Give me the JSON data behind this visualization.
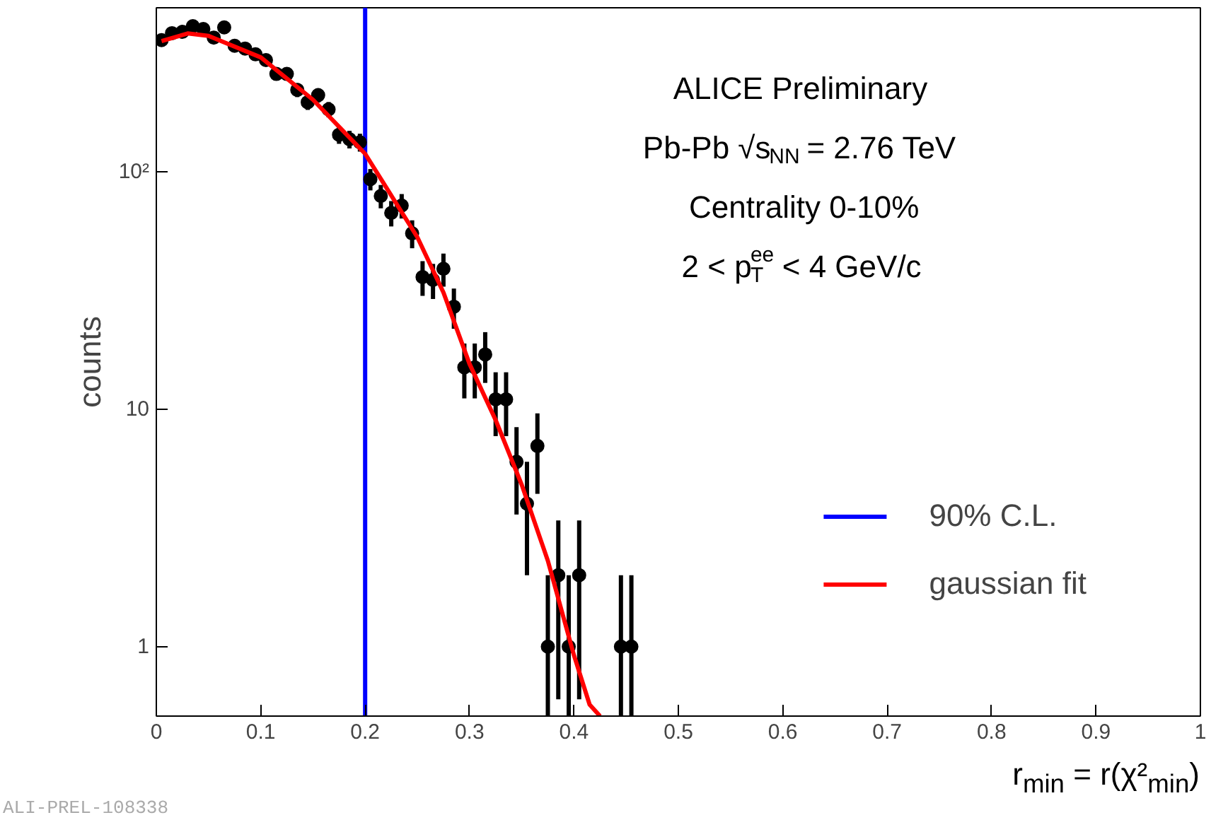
{
  "chart_data": {
    "type": "scatter",
    "xlabel": "r$_{min}$ = r(χ²$_{min}$)",
    "ylabel": "counts",
    "annotations": [
      "ALICE Preliminary",
      "Pb-Pb √s$_{NN}$ = 2.76 TeV",
      "Centrality 0-10%",
      "2 < p$_{T}$$^{ee}$ < 4 GeV/c",
      "ALI-PREL-108338"
    ],
    "xlim": [
      0,
      1
    ],
    "ylim": [
      0.51,
      490
    ],
    "log": "y",
    "grid": false,
    "legend": "bottom right",
    "marker": "circle",
    "xticks": [
      0,
      0.1,
      0.2,
      0.3,
      0.4,
      0.5,
      0.6,
      0.7,
      0.8,
      0.9,
      1
    ],
    "yticks": [
      1,
      10,
      {
        "value": 100,
        "label": "10²"
      }
    ],
    "series": [
      {
        "type": "line",
        "name": "90% C.L.",
        "color": "#0000ff",
        "marker": "none",
        "x": [
          0.2,
          0.2
        ],
        "values": [
          0.51,
          490
        ]
      },
      {
        "color": "#000000",
        "x": [
          0.005,
          0.015,
          0.025,
          0.035,
          0.045,
          0.055,
          0.065,
          0.075,
          0.085,
          0.095,
          0.105,
          0.115,
          0.125,
          0.135,
          0.145,
          0.155,
          0.165,
          0.175,
          0.185,
          0.195,
          0.205,
          0.215,
          0.225,
          0.235,
          0.245,
          0.255,
          0.265,
          0.275,
          0.285,
          0.295,
          0.305,
          0.315,
          0.325,
          0.335,
          0.345,
          0.355,
          0.365,
          0.375,
          0.385,
          0.395,
          0.405,
          0.445,
          0.455
        ],
        "values": [
          358,
          383,
          388,
          410,
          399,
          367,
          405,
          339,
          330,
          312,
          295,
          258,
          258,
          221,
          196,
          210,
          183,
          143,
          137,
          133,
          93,
          79,
          67,
          72,
          55,
          36,
          35,
          39,
          27,
          15,
          15,
          17,
          11,
          11,
          6,
          4,
          7,
          1,
          2,
          1,
          2,
          1,
          1
        ],
        "errors": [
          18.9,
          19.6,
          19.7,
          20.2,
          20.0,
          19.2,
          20.1,
          18.4,
          18.2,
          17.7,
          17.2,
          16.1,
          16.1,
          14.9,
          14.0,
          14.5,
          13.5,
          12.0,
          11.7,
          11.5,
          9.6,
          8.9,
          8.2,
          8.5,
          7.4,
          6.0,
          5.9,
          6.2,
          5.2,
          3.9,
          3.9,
          4.1,
          3.3,
          3.3,
          2.4,
          2.0,
          2.6,
          [
            0.51,
            2
          ],
          1.4,
          [
            0.51,
            2
          ],
          1.4,
          [
            0.51,
            2
          ],
          [
            0.51,
            2
          ]
        ]
      },
      {
        "type": "line",
        "name": "gaussian fit",
        "color": "#ff0000",
        "marker": "none",
        "x": [
          0.005,
          0.03,
          0.05,
          0.1,
          0.15,
          0.2,
          0.25,
          0.275,
          0.3,
          0.325,
          0.35,
          0.375,
          0.4,
          0.415,
          0.425
        ],
        "values": [
          355,
          382,
          373,
          303,
          201,
          119,
          53,
          31,
          15.5,
          9,
          4.8,
          2.3,
          0.92,
          0.57,
          0.51
        ]
      }
    ]
  }
}
